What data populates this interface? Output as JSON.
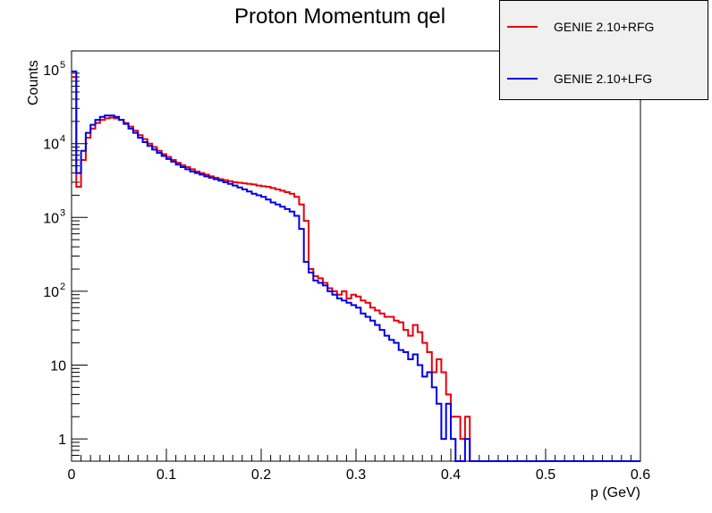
{
  "chart_data": {
    "type": "line",
    "title": "Proton Momentum qel",
    "xlabel": "p (GeV)",
    "ylabel": "Counts",
    "xlim": [
      0,
      0.6
    ],
    "ylim": [
      0.5,
      180000
    ],
    "yscale": "log",
    "x_ticks": [
      {
        "value": 0,
        "label": "0"
      },
      {
        "value": 0.1,
        "label": "0.1"
      },
      {
        "value": 0.2,
        "label": "0.2"
      },
      {
        "value": 0.3,
        "label": "0.3"
      },
      {
        "value": 0.4,
        "label": "0.4"
      },
      {
        "value": 0.5,
        "label": "0.5"
      },
      {
        "value": 0.6,
        "label": "0.6"
      }
    ],
    "y_ticks": [
      {
        "value": 1,
        "base": "1",
        "exp": ""
      },
      {
        "value": 10,
        "base": "10",
        "exp": ""
      },
      {
        "value": 100,
        "base": "10",
        "exp": "2"
      },
      {
        "value": 1000,
        "base": "10",
        "exp": "3"
      },
      {
        "value": 10000,
        "base": "10",
        "exp": "4"
      },
      {
        "value": 100000,
        "base": "10",
        "exp": "5"
      }
    ],
    "bin_width": 0.005,
    "series": [
      {
        "name": "GENIE 2.10+RFG",
        "color": "#e8000b",
        "values": [
          80000,
          2600,
          6000,
          12000,
          16000,
          19000,
          21000,
          22000,
          22500,
          22000,
          21000,
          19000,
          17000,
          15000,
          13000,
          11500,
          10000,
          9000,
          8000,
          7200,
          6600,
          6000,
          5500,
          5100,
          4800,
          4500,
          4200,
          4000,
          3800,
          3600,
          3450,
          3300,
          3200,
          3100,
          3000,
          2950,
          2900,
          2850,
          2800,
          2700,
          2650,
          2600,
          2500,
          2400,
          2300,
          2200,
          2100,
          1900,
          1500,
          900,
          200,
          160,
          150,
          130,
          110,
          100,
          90,
          100,
          80,
          90,
          85,
          75,
          70,
          60,
          55,
          50,
          45,
          45,
          40,
          38,
          30,
          25,
          35,
          28,
          20,
          15,
          8,
          12,
          8,
          4,
          2,
          2,
          1,
          2,
          0,
          0,
          0,
          0,
          0,
          0,
          0,
          0,
          0,
          0,
          0,
          0,
          0,
          0,
          0,
          0,
          0,
          0,
          0,
          0,
          0,
          0,
          0,
          0,
          0,
          0,
          0,
          0,
          0,
          0,
          0,
          0,
          0,
          0,
          0,
          0
        ]
      },
      {
        "name": "GENIE 2.10+LFG",
        "color": "#0000e8",
        "values": [
          95000,
          4000,
          8000,
          14000,
          18000,
          21000,
          23000,
          24000,
          24000,
          23000,
          21000,
          18500,
          16000,
          14000,
          12000,
          10500,
          9300,
          8300,
          7500,
          6800,
          6200,
          5700,
          5200,
          4800,
          4500,
          4200,
          4000,
          3800,
          3600,
          3450,
          3300,
          3150,
          3000,
          2850,
          2700,
          2550,
          2400,
          2250,
          2100,
          2000,
          1900,
          1750,
          1600,
          1500,
          1400,
          1300,
          1200,
          1050,
          700,
          250,
          180,
          140,
          130,
          120,
          100,
          90,
          80,
          75,
          70,
          65,
          60,
          50,
          45,
          40,
          35,
          30,
          25,
          22,
          20,
          16,
          15,
          12,
          14,
          10,
          7,
          8,
          5,
          3,
          1,
          3,
          1,
          0.5,
          0.5,
          1,
          0,
          0,
          0,
          0,
          0,
          0,
          0,
          0,
          0,
          0,
          0,
          0,
          0,
          0,
          0,
          0,
          0,
          0,
          0,
          0,
          0,
          0,
          0,
          0,
          0,
          0,
          0,
          0,
          0,
          0,
          0,
          0,
          0,
          0,
          0,
          0
        ]
      }
    ]
  }
}
